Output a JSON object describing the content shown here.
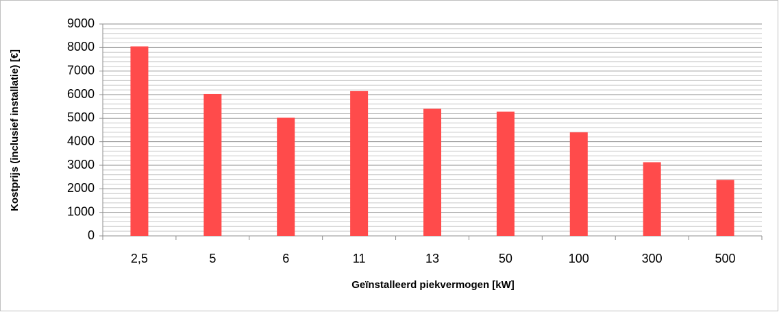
{
  "chart_data": {
    "type": "bar",
    "x_label": "Geïnstalleerd piekvermogen [kW]",
    "y_label": "Kostprijs (inclusief installatie) [€]",
    "categories": [
      "2,5",
      "5",
      "6",
      "11",
      "13",
      "50",
      "100",
      "300",
      "500"
    ],
    "values": [
      8050,
      6030,
      5020,
      6150,
      5400,
      5280,
      4400,
      3130,
      2380
    ],
    "color": "#ff4b4b",
    "ylim": [
      0,
      9000
    ],
    "yticks": [
      0,
      1000,
      2000,
      3000,
      4000,
      5000,
      6000,
      7000,
      8000,
      9000
    ],
    "grid": true
  }
}
